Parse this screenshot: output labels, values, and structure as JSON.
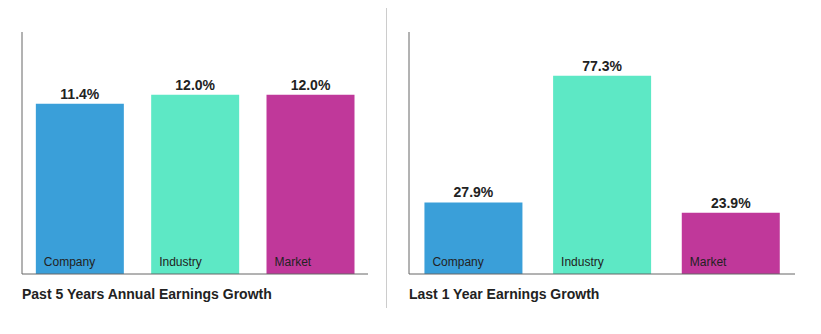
{
  "chart_data": [
    {
      "type": "bar",
      "title": "Past 5 Years Annual Earnings Growth",
      "categories": [
        "Company",
        "Industry",
        "Market"
      ],
      "values": [
        11.4,
        12.0,
        12.0
      ],
      "value_labels": [
        "11.4%",
        "12.0%",
        "12.0%"
      ],
      "colors": [
        "#3a9fd9",
        "#5de8c5",
        "#c0389a"
      ],
      "ylim": [
        0,
        16.2
      ],
      "data_labels": true,
      "tick_labels": false,
      "grid": false
    },
    {
      "type": "bar",
      "title": "Last 1 Year Earnings Growth",
      "categories": [
        "Company",
        "Industry",
        "Market"
      ],
      "values": [
        27.9,
        77.3,
        23.9
      ],
      "value_labels": [
        "27.9%",
        "77.3%",
        "23.9%"
      ],
      "colors": [
        "#3a9fd9",
        "#5de8c5",
        "#c0389a"
      ],
      "ylim": [
        0,
        94.306
      ],
      "data_labels": true,
      "tick_labels": false,
      "grid": false
    }
  ]
}
